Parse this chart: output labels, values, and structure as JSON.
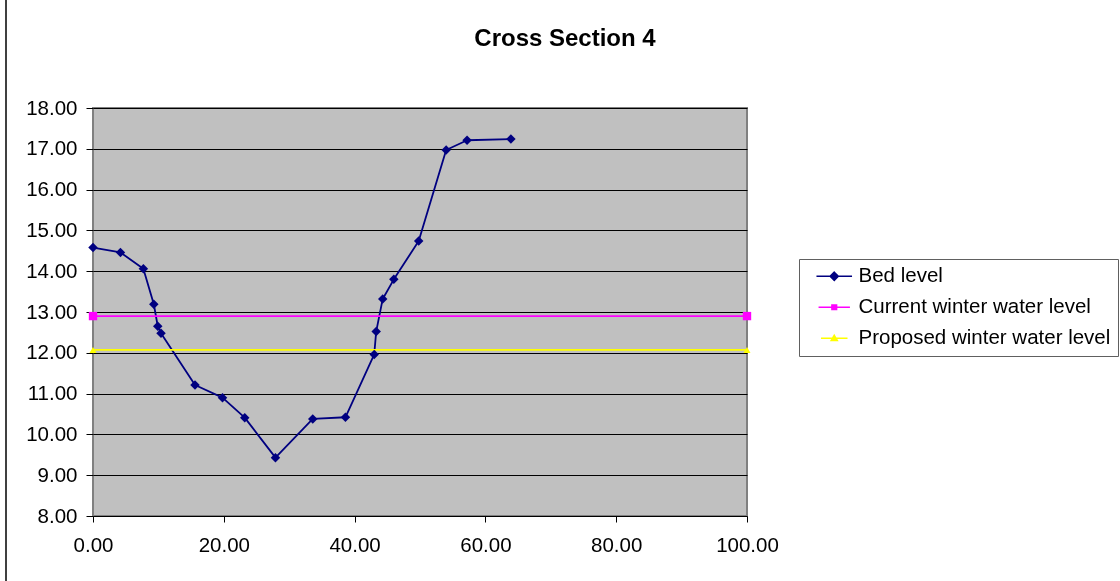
{
  "chart_data": {
    "type": "line",
    "title": "Cross Section 4",
    "series": [
      {
        "name": "Bed level",
        "color": "#000080",
        "marker": "diamond",
        "x": [
          0,
          4.2,
          7.7,
          9.3,
          9.9,
          10.4,
          15.6,
          19.8,
          23.2,
          27.9,
          33.6,
          38.6,
          43.0,
          43.3,
          44.3,
          46.0,
          49.8,
          54.0,
          57.2,
          63.9
        ],
        "values": [
          14.58,
          14.46,
          14.06,
          13.19,
          12.65,
          12.48,
          11.21,
          10.9,
          10.41,
          9.43,
          10.38,
          10.42,
          11.96,
          12.52,
          13.32,
          13.8,
          14.74,
          16.97,
          17.21,
          17.24
        ]
      },
      {
        "name": "Current winter water level",
        "color": "#ff00ff",
        "marker": "square",
        "x": [
          0,
          100
        ],
        "values": [
          12.9,
          12.9
        ]
      },
      {
        "name": "Proposed winter water level",
        "color": "#ffff00",
        "marker": "triangle",
        "x": [
          0,
          100
        ],
        "values": [
          12.07,
          12.07
        ]
      }
    ],
    "xlim": [
      0,
      100
    ],
    "xticks": [
      {
        "value": 0,
        "label": "0.00"
      },
      {
        "value": 20,
        "label": "20.00"
      },
      {
        "value": 40,
        "label": "40.00"
      },
      {
        "value": 60,
        "label": "60.00"
      },
      {
        "value": 80,
        "label": "80.00"
      },
      {
        "value": 100,
        "label": "100.00"
      }
    ],
    "ylim": [
      8,
      18
    ],
    "yticks": [
      {
        "value": 8,
        "label": "8.00"
      },
      {
        "value": 9,
        "label": "9.00"
      },
      {
        "value": 10,
        "label": "10.00"
      },
      {
        "value": 11,
        "label": "11.00"
      },
      {
        "value": 12,
        "label": "12.00"
      },
      {
        "value": 13,
        "label": "13.00"
      },
      {
        "value": 14,
        "label": "14.00"
      },
      {
        "value": 15,
        "label": "15.00"
      },
      {
        "value": 16,
        "label": "16.00"
      },
      {
        "value": 17,
        "label": "17.00"
      },
      {
        "value": 18,
        "label": "18.00"
      }
    ],
    "grid": "y",
    "legend": "right"
  }
}
